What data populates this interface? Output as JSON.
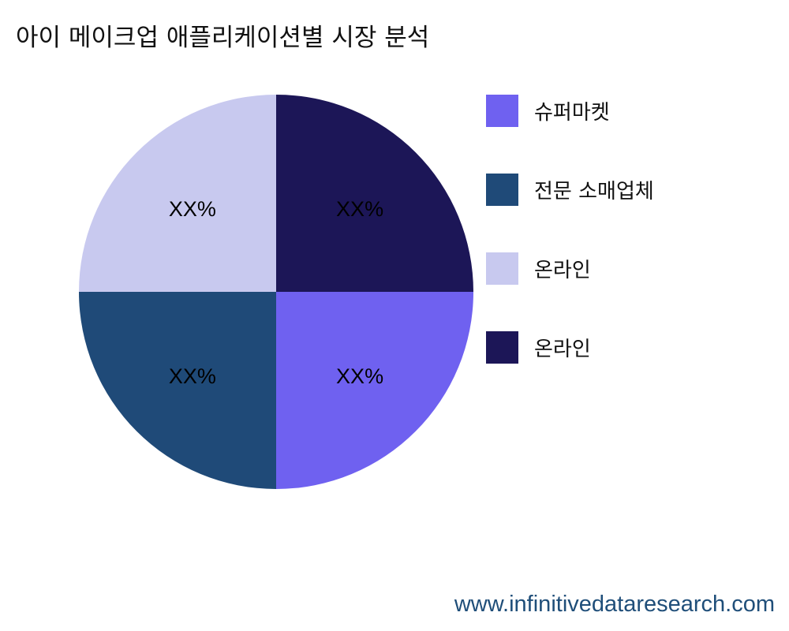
{
  "chart_data": {
    "type": "pie",
    "title": "아이 메이크업 애플리케이션별 시장 분석",
    "categories": [
      "슈퍼마켓",
      "전문 소매업체",
      "온라인",
      "온라인"
    ],
    "values": [
      25,
      25,
      25,
      25
    ],
    "data_labels": [
      "XX%",
      "XX%",
      "XX%",
      "XX%"
    ],
    "colors": [
      "#6f61f0",
      "#1f4a78",
      "#c8c9ef",
      "#1c1657"
    ],
    "start_angle": "3 o'clock",
    "direction": "clockwise",
    "legend_placement": "right"
  },
  "watermark": "www.infinitivedataresearch.com"
}
